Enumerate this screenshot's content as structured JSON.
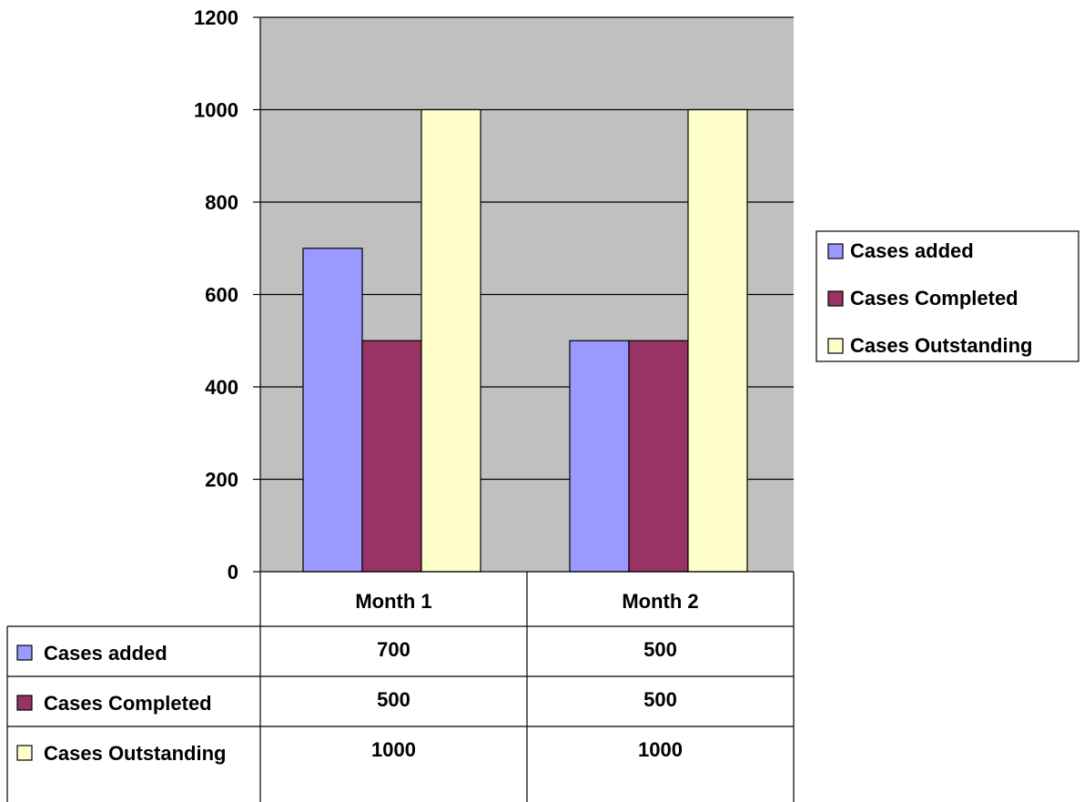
{
  "chart_data": {
    "type": "bar",
    "categories": [
      "Month 1",
      "Month 2"
    ],
    "series": [
      {
        "name": "Cases added",
        "values": [
          700,
          500
        ],
        "color": "#9999ff"
      },
      {
        "name": "Cases Completed",
        "values": [
          500,
          500
        ],
        "color": "#993366"
      },
      {
        "name": "Cases Outstanding",
        "values": [
          1000,
          1000
        ],
        "color": "#ffffcc"
      }
    ],
    "ylim": [
      0,
      1200
    ],
    "yticks": [
      0,
      200,
      400,
      600,
      800,
      1000,
      1200
    ],
    "grid": true,
    "plot_background": "#c0c0c0",
    "legend_position": "right",
    "data_table": true,
    "title": "",
    "xlabel": "",
    "ylabel": ""
  }
}
